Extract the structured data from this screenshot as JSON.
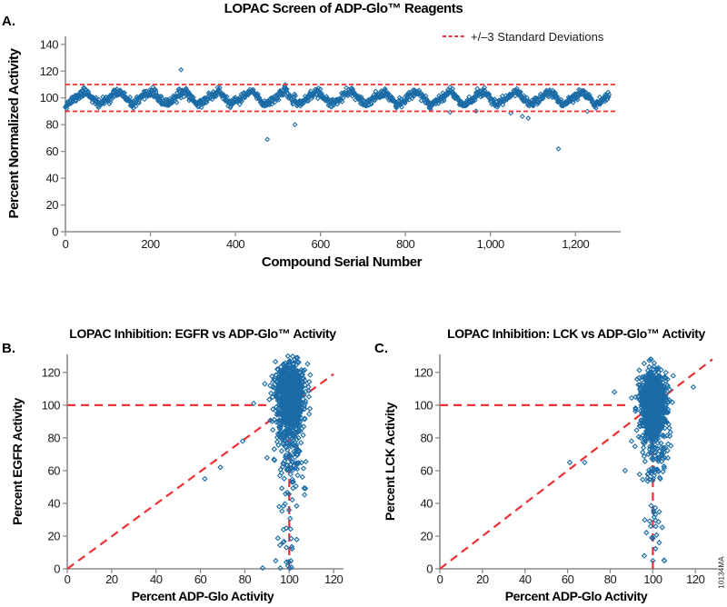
{
  "figure_id": "10134MA",
  "colors": {
    "marker": "#1b6ca6",
    "reference": "#ee3135",
    "axis": "#8c8c8c",
    "tick_text": "#1a1a1a",
    "title_text": "#000000"
  },
  "chart_data": [
    {
      "type": "scatter",
      "panel_label": "A.",
      "title": "LOPAC Screen of ADP-Glo™ Reagents",
      "xlabel": "Compound Serial Number",
      "ylabel": "Percent Normalized Activity",
      "legend_label": "+/–3 Standard Deviations",
      "legend_style": "red-dashed-line",
      "xlim": [
        0,
        1300
      ],
      "ylim": [
        0,
        146
      ],
      "xtick_values": [
        0,
        200,
        400,
        600,
        800,
        1000,
        1200
      ],
      "xtick_labels": [
        "0",
        "200",
        "400",
        "600",
        "800",
        "1,000",
        "1,200"
      ],
      "ytick_values": [
        0,
        20,
        40,
        60,
        80,
        100,
        120,
        140
      ],
      "ytick_labels": [
        "0",
        "20",
        "40",
        "60",
        "80",
        "100",
        "120",
        "140"
      ],
      "grid": false,
      "reference_lines": [
        {
          "type": "horizontal",
          "y": 110,
          "x_start": 0,
          "x_end": 1300
        },
        {
          "type": "horizontal",
          "y": 90,
          "x_start": 0,
          "x_end": 1300
        }
      ],
      "series_model": {
        "description": "1,280 LOPAC compounds; normalized activity oscillates in a sawtooth plate pattern around 100% between ~92 and ~108",
        "seed": 11,
        "n": 1280,
        "center": 100,
        "wave_amplitude": 5.2,
        "wave_period": 78,
        "wave_rise_fraction": 0.62,
        "noise_sd": 1.6,
        "y_min": 90.5,
        "y_max": 110
      },
      "outliers": [
        [
          272,
          121
        ],
        [
          475,
          69
        ],
        [
          540,
          80
        ],
        [
          905,
          89.3
        ],
        [
          966,
          90.2
        ],
        [
          1048,
          88.6
        ],
        [
          1075,
          86.2
        ],
        [
          1089,
          84.8
        ],
        [
          1160,
          62
        ],
        [
          1228,
          90
        ]
      ]
    },
    {
      "type": "scatter",
      "panel_label": "B.",
      "title": "LOPAC Inhibition: EGFR vs ADP-Glo™ Activity",
      "xlabel": "Percent ADP-Glo Activity",
      "ylabel": "Percent EGFR Activity",
      "xlim": [
        0,
        122
      ],
      "ylim": [
        0,
        131
      ],
      "xtick_values": [
        0,
        20,
        40,
        60,
        80,
        100,
        120
      ],
      "xtick_labels": [
        "0",
        "20",
        "40",
        "60",
        "80",
        "100",
        "120"
      ],
      "ytick_values": [
        0,
        20,
        40,
        60,
        80,
        100,
        120
      ],
      "ytick_labels": [
        "0",
        "20",
        "40",
        "60",
        "80",
        "100",
        "120"
      ],
      "grid": false,
      "reference_lines": [
        {
          "type": "horizontal",
          "y": 100,
          "x_start": 0,
          "x_end": 90
        },
        {
          "type": "vertical",
          "x": 100,
          "y_start": 0,
          "y_end": 100
        },
        {
          "type": "diagonal",
          "from": [
            0,
            0
          ],
          "to": [
            120,
            119
          ]
        }
      ],
      "cluster_model": {
        "description": "Dense column of compounds at ADP-Glo ~100% spanning EGFR activity ~50-130%",
        "seed": 22,
        "n": 1150,
        "x_center": 100.4,
        "x_sd": 3.0,
        "x_min": 90,
        "x_max": 111.5,
        "y_components": [
          {
            "weight": 0.78,
            "center": 107.5,
            "sd": 8.3,
            "min": 90,
            "max": 130
          },
          {
            "weight": 0.18,
            "center": 88,
            "sd": 6.5,
            "min": 72,
            "max": 101
          },
          {
            "weight": 0.04,
            "center": 67,
            "sd": 7,
            "min": 50,
            "max": 80
          }
        ]
      },
      "tail_model": {
        "seed": 23,
        "n": 55,
        "x_center": 100,
        "x_sd": 3.4,
        "x_min": 88,
        "x_max": 110,
        "y_min": 0,
        "y_max": 78
      },
      "outliers": [
        [
          62,
          55
        ],
        [
          69,
          62
        ],
        [
          79,
          78
        ],
        [
          84,
          101
        ],
        [
          89,
          113
        ],
        [
          88,
          0.5
        ],
        [
          96,
          0.5
        ],
        [
          101,
          1
        ]
      ]
    },
    {
      "type": "scatter",
      "panel_label": "C.",
      "title": "LOPAC Inhibition: LCK vs ADP-Glo™ Activity",
      "xlabel": "Percent ADP-Glo Activity",
      "ylabel": "Percent LCK Activity",
      "xlim": [
        0,
        128
      ],
      "ylim": [
        0,
        131
      ],
      "xtick_values": [
        0,
        20,
        40,
        60,
        80,
        100,
        120
      ],
      "xtick_labels": [
        "0",
        "20",
        "40",
        "60",
        "80",
        "100",
        "120"
      ],
      "ytick_values": [
        0,
        20,
        40,
        60,
        80,
        100,
        120
      ],
      "ytick_labels": [
        "0",
        "20",
        "40",
        "60",
        "80",
        "100",
        "120"
      ],
      "grid": false,
      "reference_lines": [
        {
          "type": "horizontal",
          "y": 100,
          "x_start": 0,
          "x_end": 89
        },
        {
          "type": "vertical",
          "x": 100,
          "y_start": 0,
          "y_end": 100
        },
        {
          "type": "diagonal",
          "from": [
            0,
            0
          ],
          "to": [
            128,
            128
          ]
        }
      ],
      "cluster_model": {
        "description": "Dense column of compounds at ADP-Glo ~100% spanning LCK activity ~55-128%",
        "seed": 33,
        "n": 1150,
        "x_center": 100.3,
        "x_sd": 2.9,
        "x_min": 89.5,
        "x_max": 110.5,
        "y_components": [
          {
            "weight": 0.8,
            "center": 103.5,
            "sd": 8.0,
            "min": 86,
            "max": 128
          },
          {
            "weight": 0.16,
            "center": 86,
            "sd": 6.0,
            "min": 68,
            "max": 97
          },
          {
            "weight": 0.04,
            "center": 64,
            "sd": 6.0,
            "min": 50,
            "max": 74
          }
        ]
      },
      "tail_model": {
        "seed": 34,
        "n": 36,
        "x_center": 100,
        "x_sd": 2.9,
        "x_min": 90,
        "x_max": 108,
        "y_min": 4,
        "y_max": 76
      },
      "outliers": [
        [
          61,
          65
        ],
        [
          68,
          65
        ],
        [
          82,
          108
        ],
        [
          87,
          60
        ],
        [
          90,
          78
        ],
        [
          119,
          111
        ],
        [
          96,
          8
        ],
        [
          100,
          5
        ],
        [
          103,
          16
        ]
      ]
    }
  ]
}
